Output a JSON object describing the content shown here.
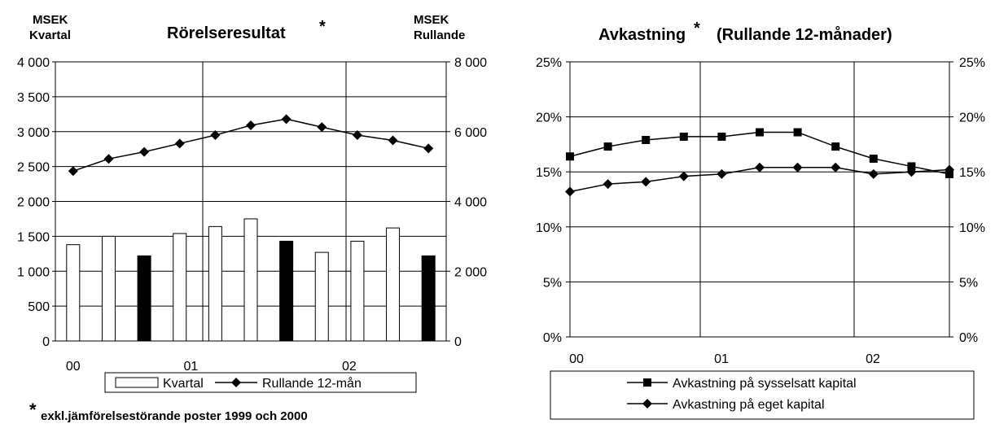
{
  "chart_data": [
    {
      "type": "bar+line",
      "title": "Rörelseresultat",
      "title_mark": "*",
      "left_axis_label_line1": "MSEK",
      "left_axis_label_line2": "Kvartal",
      "right_axis_label_line1": "MSEK",
      "right_axis_label_line2": "Rullande",
      "left_ylim": [
        0,
        4000
      ],
      "left_ticks": [
        "0",
        "500",
        "1 000",
        "1 500",
        "2 000",
        "2 500",
        "3 000",
        "3 500",
        "4 000"
      ],
      "right_ylim": [
        0,
        8000
      ],
      "right_ticks": [
        "0",
        "2 000",
        "4 000",
        "6 000",
        "8 000"
      ],
      "x_tick_labels": [
        "00",
        "01",
        "02"
      ],
      "bars": {
        "name": "Kvartal",
        "values": [
          1380,
          1500,
          1220,
          1540,
          1640,
          1750,
          1430,
          1270,
          1430,
          1620,
          1220
        ],
        "highlight": [
          false,
          false,
          true,
          false,
          false,
          false,
          true,
          false,
          false,
          false,
          true
        ]
      },
      "line": {
        "name": "Rullande 12-mån",
        "values": [
          4870,
          5220,
          5420,
          5660,
          5900,
          6180,
          6360,
          6130,
          5900,
          5750,
          5520
        ]
      },
      "legend": [
        "Kvartal",
        "Rullande 12-mån"
      ],
      "grid": "horizontal",
      "footnote_mark": "*",
      "footnote": "exkl.jämförelsestörande poster 1999 och 2000"
    },
    {
      "type": "line",
      "title": "Avkastning",
      "title_mark": "*",
      "title_suffix": "(Rullande 12-månader)",
      "ylim": [
        0,
        25
      ],
      "y_ticks": [
        "0%",
        "5%",
        "10%",
        "15%",
        "20%",
        "25%"
      ],
      "x_tick_labels": [
        "00",
        "01",
        "02"
      ],
      "series": [
        {
          "name": "Avkastning på sysselsatt kapital",
          "marker": "square",
          "values": [
            16.4,
            17.3,
            17.9,
            18.2,
            18.2,
            18.6,
            18.6,
            17.3,
            16.2,
            15.5,
            14.8
          ]
        },
        {
          "name": "Avkastning på eget kapital",
          "marker": "diamond",
          "values": [
            13.2,
            13.9,
            14.1,
            14.6,
            14.8,
            15.4,
            15.4,
            15.4,
            14.8,
            15.0,
            15.2
          ]
        }
      ],
      "grid": "horizontal"
    }
  ]
}
